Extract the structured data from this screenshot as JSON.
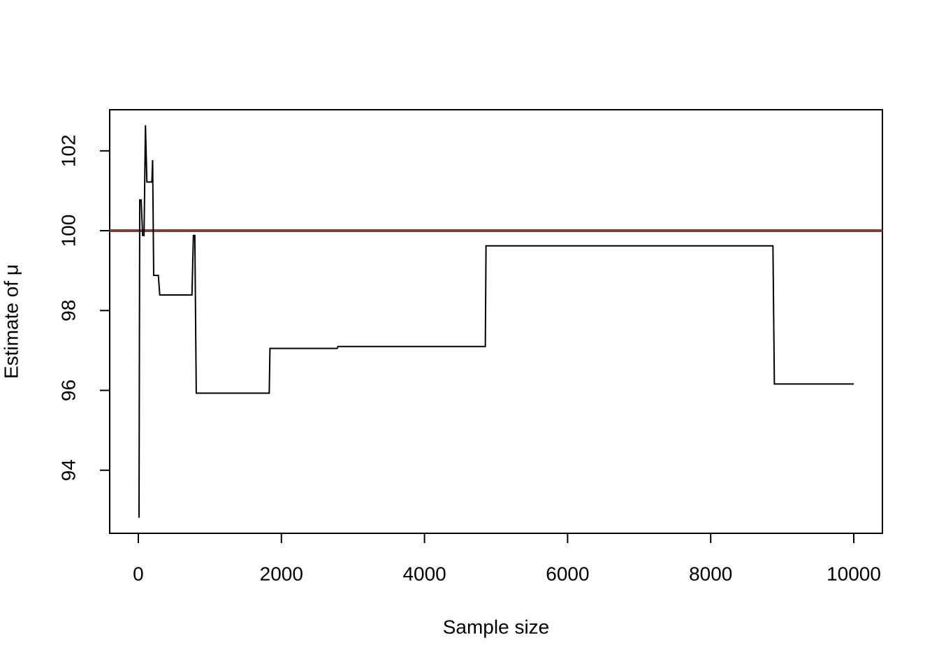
{
  "chart_data": {
    "type": "line",
    "x_label": "Sample size",
    "y_label": "Estimate of μ",
    "x": [
      10,
      20,
      40,
      60,
      80,
      100,
      120,
      190,
      200,
      215,
      280,
      300,
      750,
      770,
      790,
      810,
      1830,
      1840,
      2780,
      2790,
      4850,
      4860,
      8870,
      8890,
      10000
    ],
    "values": [
      92.81,
      100.77,
      100.77,
      99.88,
      99.88,
      102.64,
      101.22,
      101.22,
      101.77,
      98.88,
      98.88,
      98.39,
      98.39,
      99.88,
      99.88,
      95.93,
      95.93,
      97.05,
      97.05,
      97.1,
      97.1,
      99.62,
      99.62,
      96.16,
      96.16
    ],
    "color": "#000000",
    "hline": {
      "value": 100,
      "color": "#843c39"
    },
    "xlim": [
      -400,
      10400
    ],
    "ylim": [
      92.42,
      103.03
    ],
    "xticks": [
      0,
      2000,
      4000,
      6000,
      8000,
      10000
    ],
    "yticks": [
      94,
      96,
      98,
      100,
      102
    ]
  }
}
